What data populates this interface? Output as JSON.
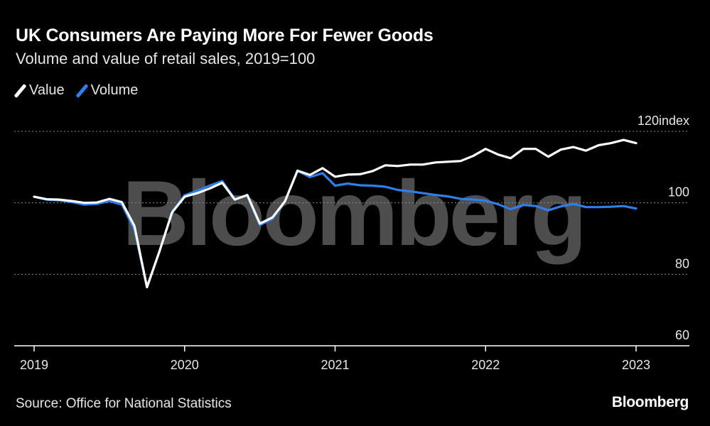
{
  "title": "UK Consumers Are Paying More For Fewer Goods",
  "subtitle": "Volume and value of retail sales, 2019=100",
  "source": "Source: Office for National Statistics",
  "brand": "Bloomberg",
  "watermark": "Bloomberg",
  "colors": {
    "value": "#ffffff",
    "volume": "#2e7fe8",
    "grid": "#8a8a8a",
    "axis": "#ffffff"
  },
  "chart_data": {
    "type": "line",
    "title": "UK Consumers Are Paying More For Fewer Goods",
    "subtitle": "Volume and value of retail sales, 2019=100",
    "ylim": [
      60,
      120
    ],
    "y_ticks": [
      120,
      100,
      80,
      60
    ],
    "y_tick_labels": [
      "120",
      "100",
      "80",
      "60"
    ],
    "y_unit": "index",
    "x_tick_labels": [
      "2019",
      "2020",
      "2021",
      "2022",
      "2023"
    ],
    "legend": [
      "Value",
      "Volume"
    ],
    "x_start": 2019.0,
    "step_months": 1,
    "series": [
      {
        "name": "Value",
        "color": "#ffffff",
        "values": [
          101.7,
          101.0,
          100.9,
          100.5,
          100.0,
          100.1,
          101.1,
          100.2,
          93.5,
          76.4,
          86.5,
          97.3,
          101.7,
          102.7,
          104.0,
          105.6,
          100.9,
          102.2,
          94.2,
          95.9,
          100.4,
          109.0,
          107.8,
          109.7,
          107.3,
          107.9,
          108.0,
          108.9,
          110.5,
          110.3,
          110.7,
          110.7,
          111.3,
          111.5,
          111.7,
          113.1,
          115.1,
          113.5,
          112.5,
          115.1,
          115.1,
          112.9,
          114.9,
          115.6,
          114.6,
          116.1,
          116.7,
          117.6,
          116.7
        ]
      },
      {
        "name": "Volume",
        "color": "#2e7fe8",
        "values": [
          101.7,
          100.9,
          100.7,
          100.2,
          99.5,
          99.7,
          100.5,
          99.5,
          92.5,
          76.4,
          86.5,
          97.5,
          102.1,
          103.4,
          104.8,
          106.1,
          101.1,
          102.0,
          93.8,
          95.5,
          100.4,
          109.0,
          107.2,
          108.3,
          104.8,
          105.4,
          104.9,
          104.8,
          104.5,
          103.6,
          103.2,
          102.7,
          102.2,
          101.8,
          101.1,
          100.9,
          100.6,
          99.6,
          98.2,
          99.4,
          99.1,
          97.9,
          99.0,
          99.7,
          98.8,
          98.8,
          98.9,
          99.1,
          98.4
        ]
      }
    ]
  }
}
